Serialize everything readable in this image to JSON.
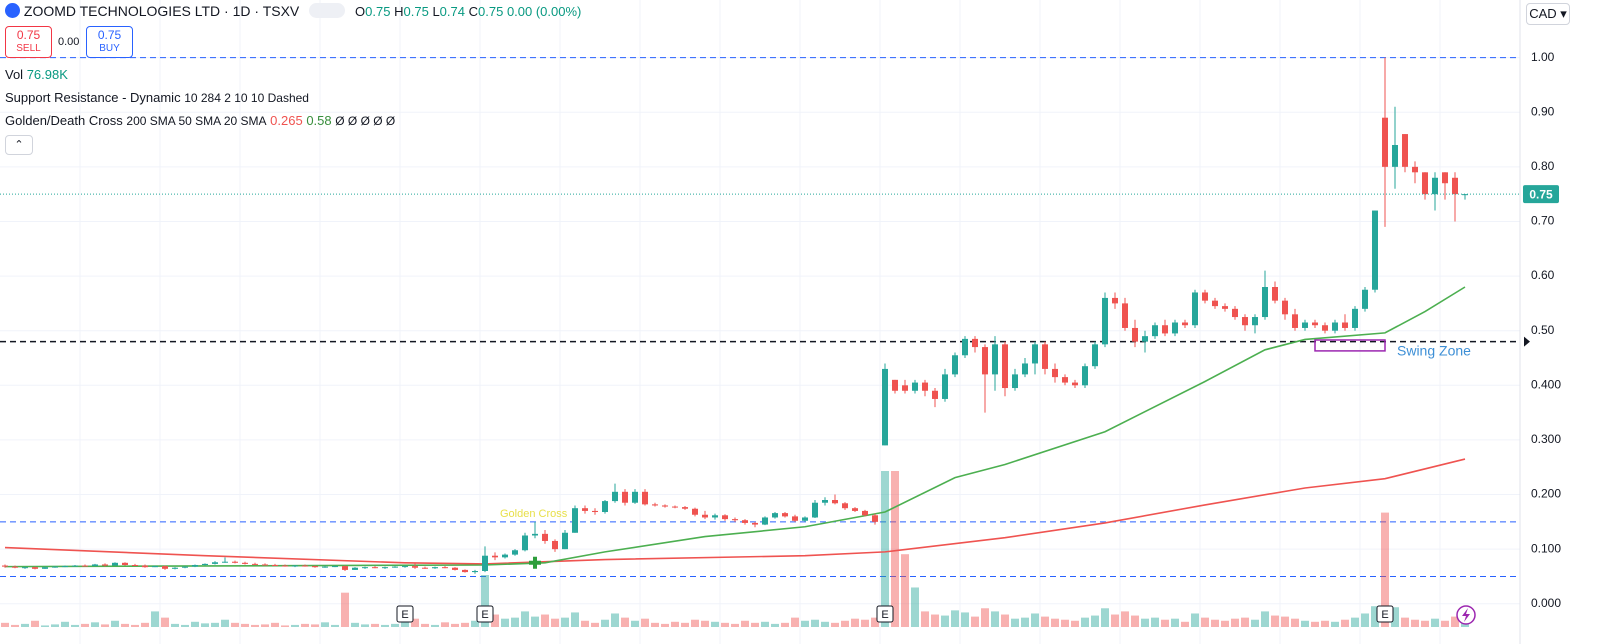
{
  "header": {
    "symbol": "ZOOMD TECHNOLOGIES LTD · 1D · TSXV",
    "ohlc_letters": [
      "O",
      "H",
      "L",
      "C"
    ],
    "change": "0.00 (0.00%)",
    "sell": 0.75,
    "sell_label": "SELL",
    "spread": "0.00",
    "buy": 0.75,
    "buy_label": "BUY",
    "currency": "CAD"
  },
  "indicators": {
    "vol_name": "Vol",
    "vol_value": "76.98K",
    "sr": "Support Resistance - Dynamic",
    "sr_params": "10 284 2 10 10 Dashed",
    "gdc": "Golden/Death Cross",
    "gdc_extra": "20 SMA",
    "gdc_tail": "Ø Ø Ø Ø Ø"
  },
  "chart_data": {
    "type": "candlestick",
    "up_color": "#26a69a",
    "down_color": "#ef5350",
    "grid": true,
    "ylim": [
      -0.07,
      1.1
    ],
    "yticks": [
      {
        "value": 0,
        "label": "0.000"
      },
      {
        "value": 0.1,
        "label": "0.100"
      },
      {
        "value": 0.2,
        "label": "0.200"
      },
      {
        "value": 0.3,
        "label": "0.300"
      },
      {
        "value": 0.4,
        "label": "0.400"
      },
      {
        "value": 0.5,
        "label": "0.50"
      },
      {
        "value": 0.6,
        "label": "0.60"
      },
      {
        "value": 0.7,
        "label": "0.70"
      },
      {
        "value": 0.8,
        "label": "0.80"
      },
      {
        "value": 0.9,
        "label": "0.90"
      },
      {
        "value": 1,
        "label": "1.00"
      }
    ],
    "candles": [
      [
        0.07,
        0.072,
        0.066,
        0.068,
        40000
      ],
      [
        0.068,
        0.07,
        0.065,
        0.066,
        20000
      ],
      [
        0.066,
        0.068,
        0.064,
        0.067,
        30000
      ],
      [
        0.067,
        0.068,
        0.063,
        0.064,
        60000
      ],
      [
        0.064,
        0.068,
        0.064,
        0.067,
        15000
      ],
      [
        0.067,
        0.069,
        0.066,
        0.068,
        25000
      ],
      [
        0.068,
        0.07,
        0.067,
        0.069,
        50000
      ],
      [
        0.069,
        0.071,
        0.068,
        0.07,
        20000
      ],
      [
        0.07,
        0.072,
        0.068,
        0.069,
        30000
      ],
      [
        0.069,
        0.073,
        0.069,
        0.072,
        45000
      ],
      [
        0.072,
        0.074,
        0.068,
        0.07,
        25000
      ],
      [
        0.07,
        0.076,
        0.07,
        0.075,
        60000
      ],
      [
        0.075,
        0.076,
        0.07,
        0.071,
        30000
      ],
      [
        0.071,
        0.073,
        0.069,
        0.07,
        20000
      ],
      [
        0.07,
        0.072,
        0.066,
        0.067,
        40000
      ],
      [
        0.067,
        0.07,
        0.067,
        0.069,
        150000
      ],
      [
        0.069,
        0.07,
        0.062,
        0.064,
        90000
      ],
      [
        0.064,
        0.067,
        0.063,
        0.066,
        30000
      ],
      [
        0.066,
        0.069,
        0.065,
        0.068,
        20000
      ],
      [
        0.068,
        0.072,
        0.067,
        0.071,
        50000
      ],
      [
        0.071,
        0.074,
        0.07,
        0.073,
        35000
      ],
      [
        0.073,
        0.078,
        0.072,
        0.076,
        40000
      ],
      [
        0.076,
        0.085,
        0.075,
        0.077,
        70000
      ],
      [
        0.077,
        0.079,
        0.074,
        0.075,
        40000
      ],
      [
        0.075,
        0.077,
        0.072,
        0.073,
        30000
      ],
      [
        0.073,
        0.075,
        0.071,
        0.072,
        20000
      ],
      [
        0.072,
        0.074,
        0.07,
        0.071,
        25000
      ],
      [
        0.071,
        0.073,
        0.069,
        0.07,
        40000
      ],
      [
        0.07,
        0.072,
        0.068,
        0.069,
        15000
      ],
      [
        0.069,
        0.071,
        0.067,
        0.07,
        20000
      ],
      [
        0.07,
        0.072,
        0.068,
        0.069,
        30000
      ],
      [
        0.069,
        0.07,
        0.066,
        0.067,
        25000
      ],
      [
        0.067,
        0.07,
        0.066,
        0.068,
        45000
      ],
      [
        0.068,
        0.07,
        0.067,
        0.069,
        20000
      ],
      [
        0.069,
        0.07,
        0.06,
        0.062,
        330000
      ],
      [
        0.062,
        0.067,
        0.062,
        0.066,
        40000
      ],
      [
        0.066,
        0.068,
        0.064,
        0.067,
        25000
      ],
      [
        0.067,
        0.069,
        0.065,
        0.066,
        30000
      ],
      [
        0.066,
        0.068,
        0.064,
        0.067,
        20000
      ],
      [
        0.067,
        0.069,
        0.066,
        0.068,
        30000
      ],
      [
        0.068,
        0.07,
        0.066,
        0.069,
        60000
      ],
      [
        0.069,
        0.074,
        0.064,
        0.066,
        80000
      ],
      [
        0.066,
        0.068,
        0.064,
        0.065,
        30000
      ],
      [
        0.065,
        0.068,
        0.064,
        0.067,
        20000
      ],
      [
        0.067,
        0.069,
        0.065,
        0.066,
        45000
      ],
      [
        0.066,
        0.067,
        0.061,
        0.062,
        30000
      ],
      [
        0.062,
        0.063,
        0.057,
        0.058,
        40000
      ],
      [
        0.058,
        0.062,
        0.055,
        0.06,
        60000
      ],
      [
        0.06,
        0.105,
        0.058,
        0.088,
        500000
      ],
      [
        0.088,
        0.094,
        0.08,
        0.085,
        120000
      ],
      [
        0.085,
        0.092,
        0.083,
        0.09,
        80000
      ],
      [
        0.09,
        0.1,
        0.088,
        0.098,
        90000
      ],
      [
        0.098,
        0.13,
        0.096,
        0.125,
        150000
      ],
      [
        0.125,
        0.15,
        0.12,
        0.128,
        100000
      ],
      [
        0.128,
        0.135,
        0.11,
        0.115,
        120000
      ],
      [
        0.115,
        0.118,
        0.095,
        0.1,
        80000
      ],
      [
        0.1,
        0.135,
        0.1,
        0.13,
        90000
      ],
      [
        0.13,
        0.18,
        0.13,
        0.175,
        140000
      ],
      [
        0.175,
        0.18,
        0.165,
        0.17,
        60000
      ],
      [
        0.17,
        0.175,
        0.163,
        0.168,
        40000
      ],
      [
        0.168,
        0.19,
        0.165,
        0.188,
        70000
      ],
      [
        0.188,
        0.22,
        0.185,
        0.205,
        130000
      ],
      [
        0.205,
        0.21,
        0.18,
        0.185,
        90000
      ],
      [
        0.185,
        0.21,
        0.183,
        0.205,
        60000
      ],
      [
        0.205,
        0.21,
        0.18,
        0.182,
        80000
      ],
      [
        0.182,
        0.185,
        0.178,
        0.18,
        40000
      ],
      [
        0.18,
        0.182,
        0.176,
        0.178,
        30000
      ],
      [
        0.178,
        0.18,
        0.175,
        0.177,
        50000
      ],
      [
        0.177,
        0.179,
        0.172,
        0.174,
        40000
      ],
      [
        0.174,
        0.176,
        0.16,
        0.163,
        70000
      ],
      [
        0.163,
        0.17,
        0.155,
        0.158,
        60000
      ],
      [
        0.158,
        0.165,
        0.154,
        0.162,
        50000
      ],
      [
        0.162,
        0.164,
        0.152,
        0.155,
        40000
      ],
      [
        0.155,
        0.158,
        0.15,
        0.153,
        30000
      ],
      [
        0.153,
        0.155,
        0.145,
        0.148,
        60000
      ],
      [
        0.148,
        0.15,
        0.14,
        0.145,
        40000
      ],
      [
        0.145,
        0.16,
        0.144,
        0.158,
        50000
      ],
      [
        0.158,
        0.168,
        0.156,
        0.166,
        30000
      ],
      [
        0.166,
        0.168,
        0.158,
        0.16,
        40000
      ],
      [
        0.16,
        0.163,
        0.15,
        0.152,
        90000
      ],
      [
        0.152,
        0.16,
        0.15,
        0.158,
        60000
      ],
      [
        0.158,
        0.19,
        0.157,
        0.185,
        70000
      ],
      [
        0.185,
        0.195,
        0.18,
        0.19,
        50000
      ],
      [
        0.19,
        0.2,
        0.182,
        0.184,
        40000
      ],
      [
        0.184,
        0.186,
        0.172,
        0.175,
        60000
      ],
      [
        0.175,
        0.177,
        0.168,
        0.17,
        80000
      ],
      [
        0.17,
        0.172,
        0.16,
        0.162,
        70000
      ],
      [
        0.162,
        0.165,
        0.145,
        0.15,
        90000
      ],
      [
        0.29,
        0.44,
        0.29,
        0.43,
        1500000
      ],
      [
        0.41,
        0.41,
        0.385,
        0.39,
        1500000
      ],
      [
        0.4,
        0.41,
        0.385,
        0.39,
        700000
      ],
      [
        0.39,
        0.41,
        0.385,
        0.405,
        380000
      ],
      [
        0.405,
        0.41,
        0.38,
        0.39,
        150000
      ],
      [
        0.39,
        0.395,
        0.36,
        0.375,
        120000
      ],
      [
        0.375,
        0.43,
        0.37,
        0.42,
        110000
      ],
      [
        0.42,
        0.46,
        0.415,
        0.455,
        160000
      ],
      [
        0.455,
        0.49,
        0.45,
        0.485,
        140000
      ],
      [
        0.485,
        0.49,
        0.46,
        0.47,
        100000
      ],
      [
        0.47,
        0.475,
        0.35,
        0.42,
        180000
      ],
      [
        0.42,
        0.49,
        0.39,
        0.475,
        150000
      ],
      [
        0.475,
        0.48,
        0.38,
        0.395,
        120000
      ],
      [
        0.395,
        0.43,
        0.39,
        0.42,
        80000
      ],
      [
        0.42,
        0.45,
        0.415,
        0.44,
        90000
      ],
      [
        0.44,
        0.48,
        0.42,
        0.475,
        130000
      ],
      [
        0.475,
        0.48,
        0.42,
        0.43,
        100000
      ],
      [
        0.43,
        0.44,
        0.405,
        0.415,
        80000
      ],
      [
        0.415,
        0.42,
        0.4,
        0.405,
        70000
      ],
      [
        0.405,
        0.41,
        0.395,
        0.4,
        60000
      ],
      [
        0.4,
        0.44,
        0.395,
        0.435,
        90000
      ],
      [
        0.435,
        0.48,
        0.43,
        0.475,
        110000
      ],
      [
        0.475,
        0.57,
        0.47,
        0.56,
        180000
      ],
      [
        0.56,
        0.57,
        0.54,
        0.55,
        120000
      ],
      [
        0.55,
        0.56,
        0.5,
        0.505,
        150000
      ],
      [
        0.505,
        0.52,
        0.47,
        0.48,
        110000
      ],
      [
        0.48,
        0.5,
        0.46,
        0.49,
        80000
      ],
      [
        0.49,
        0.515,
        0.485,
        0.51,
        90000
      ],
      [
        0.51,
        0.52,
        0.49,
        0.495,
        70000
      ],
      [
        0.495,
        0.52,
        0.49,
        0.515,
        80000
      ],
      [
        0.515,
        0.52,
        0.505,
        0.51,
        50000
      ],
      [
        0.51,
        0.575,
        0.505,
        0.57,
        130000
      ],
      [
        0.57,
        0.575,
        0.55,
        0.555,
        90000
      ],
      [
        0.555,
        0.56,
        0.54,
        0.545,
        70000
      ],
      [
        0.545,
        0.55,
        0.535,
        0.54,
        60000
      ],
      [
        0.54,
        0.545,
        0.52,
        0.525,
        80000
      ],
      [
        0.525,
        0.53,
        0.5,
        0.51,
        90000
      ],
      [
        0.51,
        0.53,
        0.495,
        0.525,
        70000
      ],
      [
        0.525,
        0.61,
        0.52,
        0.58,
        150000
      ],
      [
        0.58,
        0.59,
        0.55,
        0.555,
        110000
      ],
      [
        0.555,
        0.56,
        0.52,
        0.53,
        100000
      ],
      [
        0.53,
        0.54,
        0.5,
        0.505,
        80000
      ],
      [
        0.505,
        0.52,
        0.5,
        0.515,
        60000
      ],
      [
        0.515,
        0.52,
        0.505,
        0.51,
        50000
      ],
      [
        0.51,
        0.515,
        0.495,
        0.5,
        60000
      ],
      [
        0.5,
        0.52,
        0.495,
        0.515,
        50000
      ],
      [
        0.515,
        0.53,
        0.5,
        0.505,
        70000
      ],
      [
        0.505,
        0.545,
        0.5,
        0.54,
        90000
      ],
      [
        0.54,
        0.58,
        0.535,
        0.575,
        130000
      ],
      [
        0.575,
        0.72,
        0.57,
        0.72,
        200000
      ],
      [
        0.89,
        1,
        0.69,
        0.8,
        1100000
      ],
      [
        0.8,
        0.91,
        0.76,
        0.84,
        190000
      ],
      [
        0.86,
        0.86,
        0.79,
        0.8,
        90000
      ],
      [
        0.8,
        0.81,
        0.77,
        0.79,
        70000
      ],
      [
        0.79,
        0.79,
        0.74,
        0.75,
        60000
      ],
      [
        0.75,
        0.79,
        0.72,
        0.78,
        80000
      ],
      [
        0.79,
        0.79,
        0.74,
        0.77,
        60000
      ],
      [
        0.78,
        0.79,
        0.7,
        0.75,
        100000
      ],
      [
        0.75,
        0.75,
        0.74,
        0.75,
        76980
      ]
    ],
    "series": [
      {
        "name": "200 SMA",
        "color": "#ef5350",
        "x": [
          0,
          20,
          40,
          48,
          60,
          80,
          88,
          100,
          110,
          120,
          130,
          138,
          146
        ],
        "values": [
          0.103,
          0.088,
          0.075,
          0.073,
          0.081,
          0.088,
          0.095,
          0.121,
          0.148,
          0.181,
          0.212,
          0.229,
          0.265
        ]
      },
      {
        "name": "50 SMA",
        "color": "#4caf50",
        "x": [
          0,
          48,
          54,
          60,
          70,
          80,
          88,
          95,
          100,
          110,
          120,
          126,
          130,
          138,
          142,
          146
        ],
        "values": [
          0.068,
          0.071,
          0.075,
          0.095,
          0.123,
          0.141,
          0.168,
          0.231,
          0.255,
          0.315,
          0.407,
          0.465,
          0.484,
          0.496,
          0.535,
          0.58
        ]
      }
    ],
    "levels": [
      {
        "value": 1,
        "color": "#2962ff"
      },
      {
        "value": 0.48,
        "color": "#131722"
      },
      {
        "value": 0.15,
        "color": "#2962ff"
      },
      {
        "value": 0.05,
        "color": "#2962ff"
      }
    ],
    "earnings": {
      "label": "E",
      "at": [
        40,
        48,
        88,
        138
      ]
    },
    "golden_cross": {
      "text": "Golden Cross",
      "at": 53,
      "value": 0.075
    },
    "swing_zone": {
      "text": "Swing Zone",
      "from": 131,
      "to": 138,
      "top": 0.483,
      "bottom": 0.463
    }
  }
}
